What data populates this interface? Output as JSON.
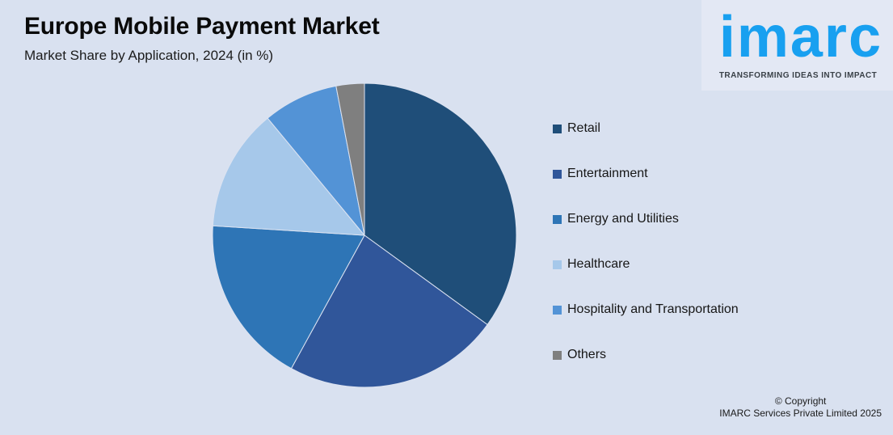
{
  "header": {
    "title": "Europe Mobile Payment Market",
    "subtitle": "Market Share by Application, 2024 (in %)"
  },
  "logo": {
    "wordmark": "imarc",
    "tagline": "TRANSFORMING IDEAS INTO IMPACT"
  },
  "footer": {
    "copyright_line1": "© Copyright",
    "copyright_line2": "IMARC Services Private Limited 2025"
  },
  "colors": {
    "background": "#D9E1F0",
    "brand_blue": "#18A0F0",
    "tagline_navy": "#3A4148",
    "slice_separator": "#DCE3F1"
  },
  "chart_data": {
    "type": "pie",
    "title": "Europe Mobile Payment Market",
    "subtitle": "Market Share by Application, 2024 (in %)",
    "unit": "%",
    "start_angle_deg_from_top": 0,
    "direction": "clockwise",
    "legend_position": "right",
    "data_labels": false,
    "slices": [
      {
        "label": "Retail",
        "value": 35,
        "color": "#1F4E79"
      },
      {
        "label": "Entertainment",
        "value": 23,
        "color": "#30569A"
      },
      {
        "label": "Energy and Utilities",
        "value": 18,
        "color": "#2E75B6"
      },
      {
        "label": "Healthcare",
        "value": 13,
        "color": "#A6C8EA"
      },
      {
        "label": "Hospitality and Transportation",
        "value": 8,
        "color": "#5393D6"
      },
      {
        "label": "Others",
        "value": 3,
        "color": "#7F7F7F"
      }
    ]
  }
}
